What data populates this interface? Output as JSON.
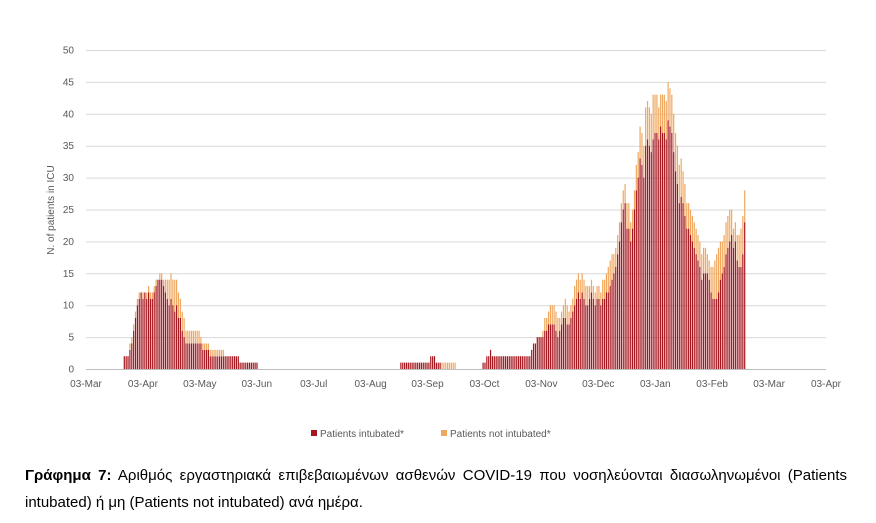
{
  "chart_data": {
    "type": "bar",
    "stacked": true,
    "ylabel": "N. of patients in ICU",
    "ylim": [
      0,
      50
    ],
    "yticks": [
      0,
      5,
      10,
      15,
      20,
      25,
      30,
      35,
      40,
      45,
      50
    ],
    "xticks": [
      "03-Mar",
      "03-Apr",
      "03-May",
      "03-Jun",
      "03-Jul",
      "03-Aug",
      "03-Sep",
      "03-Oct",
      "03-Nov",
      "03-Dec",
      "03-Jan",
      "03-Feb",
      "03-Mar",
      "03-Apr"
    ],
    "grid": true,
    "legend_position": "bottom",
    "colors": {
      "intubated": "#A5161E",
      "not_intubated": "#F0A860",
      "grid": "#D9D9D9"
    },
    "series": [
      {
        "name": "Patients intubated*",
        "color": "#A5161E",
        "values": [
          0,
          0,
          0,
          0,
          0,
          0,
          0,
          0,
          0,
          0,
          0,
          0,
          0,
          0,
          0,
          0,
          0,
          0,
          0,
          0,
          2,
          2,
          2,
          3,
          4,
          6,
          8,
          10,
          11,
          12,
          11,
          12,
          11,
          12,
          11,
          11,
          12,
          13,
          14,
          14,
          14,
          13,
          12,
          11,
          10,
          11,
          10,
          9,
          10,
          8,
          8,
          6,
          5,
          4,
          4,
          4,
          4,
          4,
          4,
          4,
          4,
          4,
          3,
          3,
          3,
          3,
          2,
          2,
          2,
          2,
          2,
          2,
          2,
          2,
          2,
          2,
          2,
          2,
          2,
          2,
          2,
          2,
          1,
          1,
          1,
          1,
          1,
          1,
          1,
          1,
          1,
          1,
          0,
          0,
          0,
          0,
          0,
          0,
          0,
          0,
          0,
          0,
          0,
          0,
          0,
          0,
          0,
          0,
          0,
          0,
          0,
          0,
          0,
          0,
          0,
          0,
          0,
          0,
          0,
          0,
          0,
          0,
          0,
          0,
          0,
          0,
          0,
          0,
          0,
          0,
          0,
          0,
          0,
          0,
          0,
          0,
          0,
          0,
          0,
          0,
          0,
          0,
          0,
          0,
          0,
          0,
          0,
          0,
          0,
          0,
          0,
          0,
          0,
          0,
          0,
          0,
          0,
          0,
          0,
          0,
          0,
          0,
          0,
          0,
          0,
          0,
          0,
          0,
          1,
          1,
          1,
          1,
          1,
          1,
          1,
          1,
          1,
          1,
          1,
          1,
          1,
          1,
          1,
          1,
          2,
          2,
          2,
          1,
          1,
          1,
          0,
          0,
          0,
          0,
          0,
          0,
          0,
          0,
          0,
          0,
          0,
          0,
          0,
          0,
          0,
          0,
          0,
          0,
          0,
          0,
          0,
          0,
          1,
          1,
          2,
          2,
          3,
          2,
          2,
          2,
          2,
          2,
          2,
          2,
          2,
          2,
          2,
          2,
          2,
          2,
          2,
          2,
          2,
          2,
          2,
          2,
          2,
          2,
          3,
          4,
          4,
          5,
          5,
          5,
          5,
          6,
          6,
          7,
          7,
          7,
          7,
          6,
          5,
          6,
          7,
          8,
          8,
          7,
          7,
          8,
          9,
          10,
          11,
          12,
          11,
          12,
          11,
          10,
          10,
          11,
          12,
          11,
          10,
          11,
          11,
          10,
          11,
          11,
          12,
          12,
          13,
          14,
          15,
          16,
          18,
          20,
          23,
          25,
          26,
          22,
          22,
          20,
          22,
          25,
          28,
          30,
          33,
          32,
          30,
          35,
          36,
          35,
          34,
          36,
          37,
          37,
          36,
          38,
          37,
          37,
          36,
          39,
          38,
          37,
          34,
          31,
          29,
          26,
          27,
          26,
          24,
          22,
          22,
          21,
          20,
          19,
          18,
          17,
          16,
          14,
          15,
          15,
          15,
          14,
          12,
          11,
          11,
          11,
          12,
          14,
          15,
          16,
          18,
          19,
          20,
          21,
          19,
          20,
          17,
          16,
          16,
          18,
          23
        ]
      },
      {
        "name": "Patients not intubated*",
        "color": "#F0A860",
        "values": [
          0,
          0,
          0,
          0,
          0,
          0,
          0,
          0,
          0,
          0,
          0,
          0,
          0,
          0,
          0,
          0,
          0,
          0,
          0,
          0,
          0,
          0,
          0,
          1,
          1,
          1,
          1,
          1,
          1,
          0,
          1,
          0,
          1,
          1,
          1,
          1,
          1,
          1,
          0,
          1,
          1,
          1,
          2,
          3,
          4,
          4,
          4,
          5,
          4,
          4,
          3,
          3,
          3,
          2,
          2,
          2,
          2,
          2,
          2,
          2,
          2,
          1,
          1,
          1,
          1,
          1,
          1,
          1,
          1,
          1,
          1,
          1,
          1,
          1,
          0,
          0,
          0,
          0,
          0,
          0,
          0,
          0,
          0,
          0,
          0,
          0,
          0,
          0,
          0,
          0,
          0,
          0,
          0,
          0,
          0,
          0,
          0,
          0,
          0,
          0,
          0,
          0,
          0,
          0,
          0,
          0,
          0,
          0,
          0,
          0,
          0,
          0,
          0,
          0,
          0,
          0,
          0,
          0,
          0,
          0,
          0,
          0,
          0,
          0,
          0,
          0,
          0,
          0,
          0,
          0,
          0,
          0,
          0,
          0,
          0,
          0,
          0,
          0,
          0,
          0,
          0,
          0,
          0,
          0,
          0,
          0,
          0,
          0,
          0,
          0,
          0,
          0,
          0,
          0,
          0,
          0,
          0,
          0,
          0,
          0,
          0,
          0,
          0,
          0,
          0,
          0,
          0,
          0,
          0,
          0,
          0,
          0,
          0,
          0,
          0,
          0,
          0,
          0,
          0,
          0,
          0,
          0,
          0,
          0,
          0,
          0,
          0,
          0,
          0,
          0,
          1,
          1,
          1,
          1,
          1,
          1,
          1,
          1,
          0,
          0,
          0,
          0,
          0,
          0,
          0,
          0,
          0,
          0,
          0,
          0,
          0,
          0,
          0,
          0,
          0,
          0,
          0,
          0,
          0,
          0,
          0,
          0,
          0,
          0,
          0,
          0,
          0,
          0,
          0,
          0,
          0,
          0,
          0,
          0,
          0,
          0,
          0,
          0,
          0,
          0,
          0,
          0,
          0,
          0,
          1,
          2,
          2,
          2,
          3,
          3,
          3,
          3,
          3,
          2,
          2,
          2,
          3,
          3,
          2,
          2,
          2,
          3,
          3,
          3,
          3,
          3,
          3,
          3,
          3,
          2,
          2,
          2,
          2,
          2,
          2,
          2,
          3,
          3,
          3,
          4,
          4,
          4,
          3,
          3,
          3,
          3,
          3,
          3,
          3,
          4,
          4,
          3,
          3,
          3,
          4,
          4,
          5,
          5,
          5,
          6,
          6,
          6,
          6,
          7,
          6,
          6,
          5,
          5,
          6,
          6,
          6,
          6,
          6,
          6,
          6,
          6,
          6,
          6,
          6,
          5,
          5,
          4,
          4,
          4,
          4,
          4,
          4,
          4,
          4,
          4,
          4,
          4,
          3,
          3,
          4,
          5,
          6,
          7,
          7,
          6,
          5,
          5,
          5,
          5,
          5,
          4,
          3,
          3,
          4,
          5,
          6,
          6,
          5,
          4,
          3,
          3,
          5,
          5,
          5,
          4,
          3,
          2,
          5,
          5,
          5,
          5,
          3
        ]
      }
    ]
  },
  "caption": {
    "label": "Γράφημα 7:",
    "text": " Αριθμός εργαστηριακά επιβεβαιωμένων ασθενών COVID-19 που νοσηλεύονται διασωληνωμένοι (Patients intubated) ή μη (Patients not intubated) ανά ημέρα."
  }
}
